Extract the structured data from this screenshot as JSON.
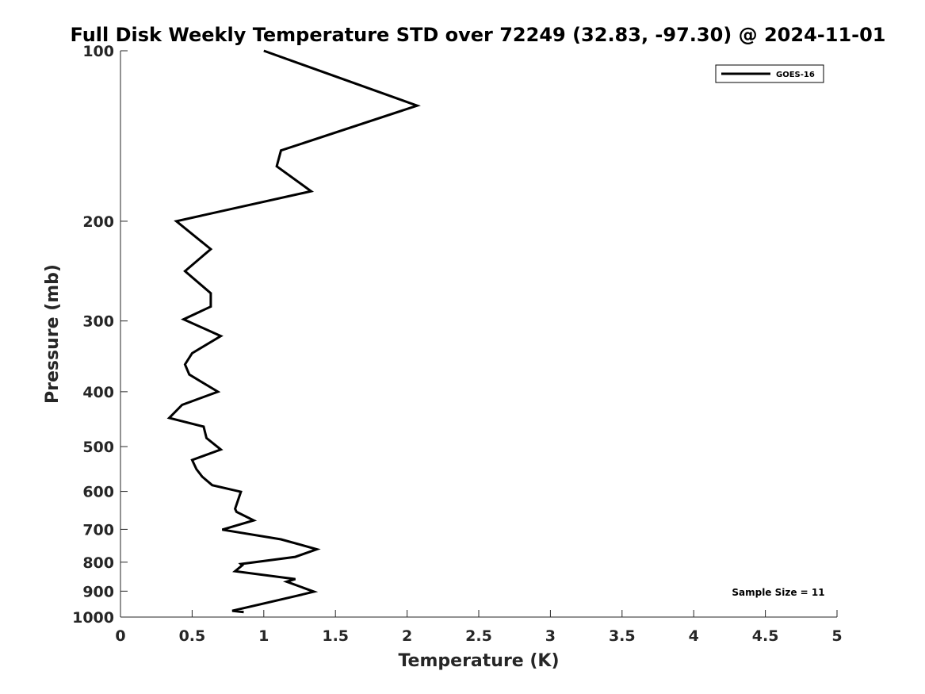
{
  "chart_data": {
    "type": "line",
    "title": "Full Disk Weekly Temperature STD over 72249 (32.83, -97.30) @ 2024-11-01",
    "xlabel": "Temperature (K)",
    "ylabel": "Pressure (mb)",
    "xlim": [
      0,
      5
    ],
    "ylim": [
      100,
      1000
    ],
    "y_scale": "log",
    "y_reversed": true,
    "grid": false,
    "xticks": [
      0,
      0.5,
      1,
      1.5,
      2,
      2.5,
      3,
      3.5,
      4,
      4.5,
      5
    ],
    "xtick_labels": [
      "0",
      "0.5",
      "1",
      "1.5",
      "2",
      "2.5",
      "3",
      "3.5",
      "4",
      "4.5",
      "5"
    ],
    "yticks": [
      100,
      200,
      300,
      400,
      500,
      600,
      700,
      800,
      900,
      1000
    ],
    "ytick_labels": [
      "100",
      "200",
      "300",
      "400",
      "500",
      "600",
      "700",
      "800",
      "900",
      "1000"
    ],
    "legend_position": "top-right",
    "series": [
      {
        "name": "GOES-16",
        "color": "#000000",
        "x": [
          1.0,
          2.07,
          1.12,
          1.09,
          1.33,
          0.39,
          0.63,
          0.45,
          0.63,
          0.63,
          0.44,
          0.7,
          0.5,
          0.45,
          0.48,
          0.68,
          0.43,
          0.34,
          0.58,
          0.6,
          0.7,
          0.5,
          0.53,
          0.57,
          0.64,
          0.84,
          0.8,
          0.81,
          0.93,
          0.71,
          1.12,
          1.37,
          1.22,
          0.84,
          0.85,
          0.8,
          1.22,
          1.16,
          1.35,
          1.21,
          0.78,
          0.86
        ],
        "y": [
          100,
          125,
          150,
          160,
          177,
          200,
          224,
          245,
          268,
          283,
          298,
          319,
          342,
          358,
          373,
          400,
          422,
          445,
          461,
          483,
          506,
          528,
          548,
          565,
          585,
          601,
          644,
          652,
          675,
          701,
          729,
          759,
          783,
          806,
          810,
          830,
          857,
          866,
          902,
          920,
          975,
          980
        ]
      }
    ],
    "annotation": "Sample Size = 11"
  }
}
